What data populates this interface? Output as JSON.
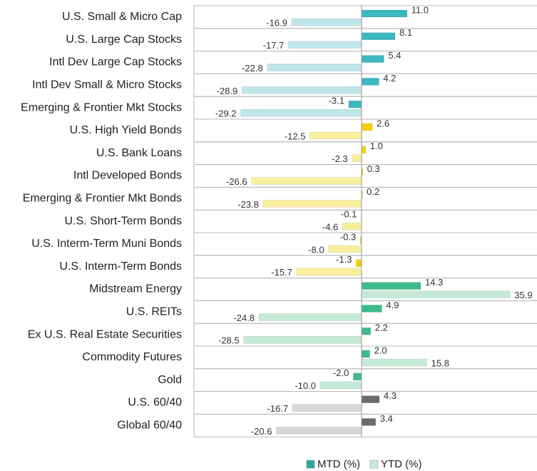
{
  "chart_data": {
    "type": "bar",
    "orientation": "horizontal",
    "categories": [
      "U.S. Small & Micro Cap",
      "U.S. Large Cap Stocks",
      "Intl Dev Large Cap Stocks",
      "Intl Dev Small & Micro Stocks",
      "Emerging & Frontier Mkt Stocks",
      "U.S. High Yield Bonds",
      "U.S. Bank Loans",
      "Intl Developed Bonds",
      "Emerging & Frontier Mkt Bonds",
      "U.S. Short-Term Bonds",
      "U.S. Interm-Term Muni Bonds",
      "U.S. Interm-Term Bonds",
      "Midstream Energy",
      "U.S. REITs",
      "Ex U.S. Real Estate Securities",
      "Commodity Futures",
      "Gold",
      "U.S. 60/40",
      "Global 60/40"
    ],
    "series": [
      {
        "name": "MTD (%)",
        "color": "#2fa89a",
        "values": [
          11.0,
          8.1,
          5.4,
          4.2,
          -3.1,
          2.6,
          1.0,
          0.3,
          0.2,
          -0.1,
          -0.3,
          -1.3,
          14.3,
          4.9,
          2.2,
          2.0,
          -2.0,
          4.3,
          3.4
        ],
        "value_labels": [
          "11.0",
          "8.1",
          "5.4",
          "4.2",
          "-3.1",
          "2.6",
          "1.0",
          "0.3",
          "0.2",
          "-0.1",
          "-0.3",
          "-1.3",
          "14.3",
          "4.9",
          "2.2",
          "2.0",
          "-2.0",
          "4.3",
          "3.4"
        ],
        "colors": [
          "#3bb8c0",
          "#3bb8c0",
          "#3bb8c0",
          "#3bb8c0",
          "#3bb8c0",
          "#f2d200",
          "#f2d200",
          "#f2d200",
          "#f2d200",
          "#f2d200",
          "#f2d200",
          "#f2d200",
          "#3cbc8c",
          "#3cbc8c",
          "#3cbc8c",
          "#3cbc8c",
          "#3cbc8c",
          "#6b6b6b",
          "#6b6b6b"
        ]
      },
      {
        "name": "YTD (%)",
        "color": "#c8ebe0",
        "values": [
          -16.9,
          -17.7,
          -22.8,
          -28.9,
          -29.2,
          -12.5,
          -2.3,
          -26.6,
          -23.8,
          -4.6,
          -8.0,
          -15.7,
          35.9,
          -24.8,
          -28.5,
          15.8,
          -10.0,
          -16.7,
          -20.6
        ],
        "value_labels": [
          "-16.9",
          "-17.7",
          "-22.8",
          "-28.9",
          "-29.2",
          "-12.5",
          "-2.3",
          "-26.6",
          "-23.8",
          "-4.6",
          "-8.0",
          "-15.7",
          "35.9",
          "-24.8",
          "-28.5",
          "15.8",
          "-10.0",
          "-16.7",
          "-20.6"
        ],
        "colors": [
          "#bfe6ea",
          "#bfe6ea",
          "#bfe6ea",
          "#bfe6ea",
          "#bfe6ea",
          "#f7ef9e",
          "#f7ef9e",
          "#f7ef9e",
          "#f7ef9e",
          "#f7ef9e",
          "#f7ef9e",
          "#f7ef9e",
          "#c5ead8",
          "#c5ead8",
          "#c5ead8",
          "#c5ead8",
          "#c5ead8",
          "#d8d8d8",
          "#d8d8d8"
        ]
      }
    ],
    "xlim": [
      -40.5,
      42.4
    ]
  }
}
